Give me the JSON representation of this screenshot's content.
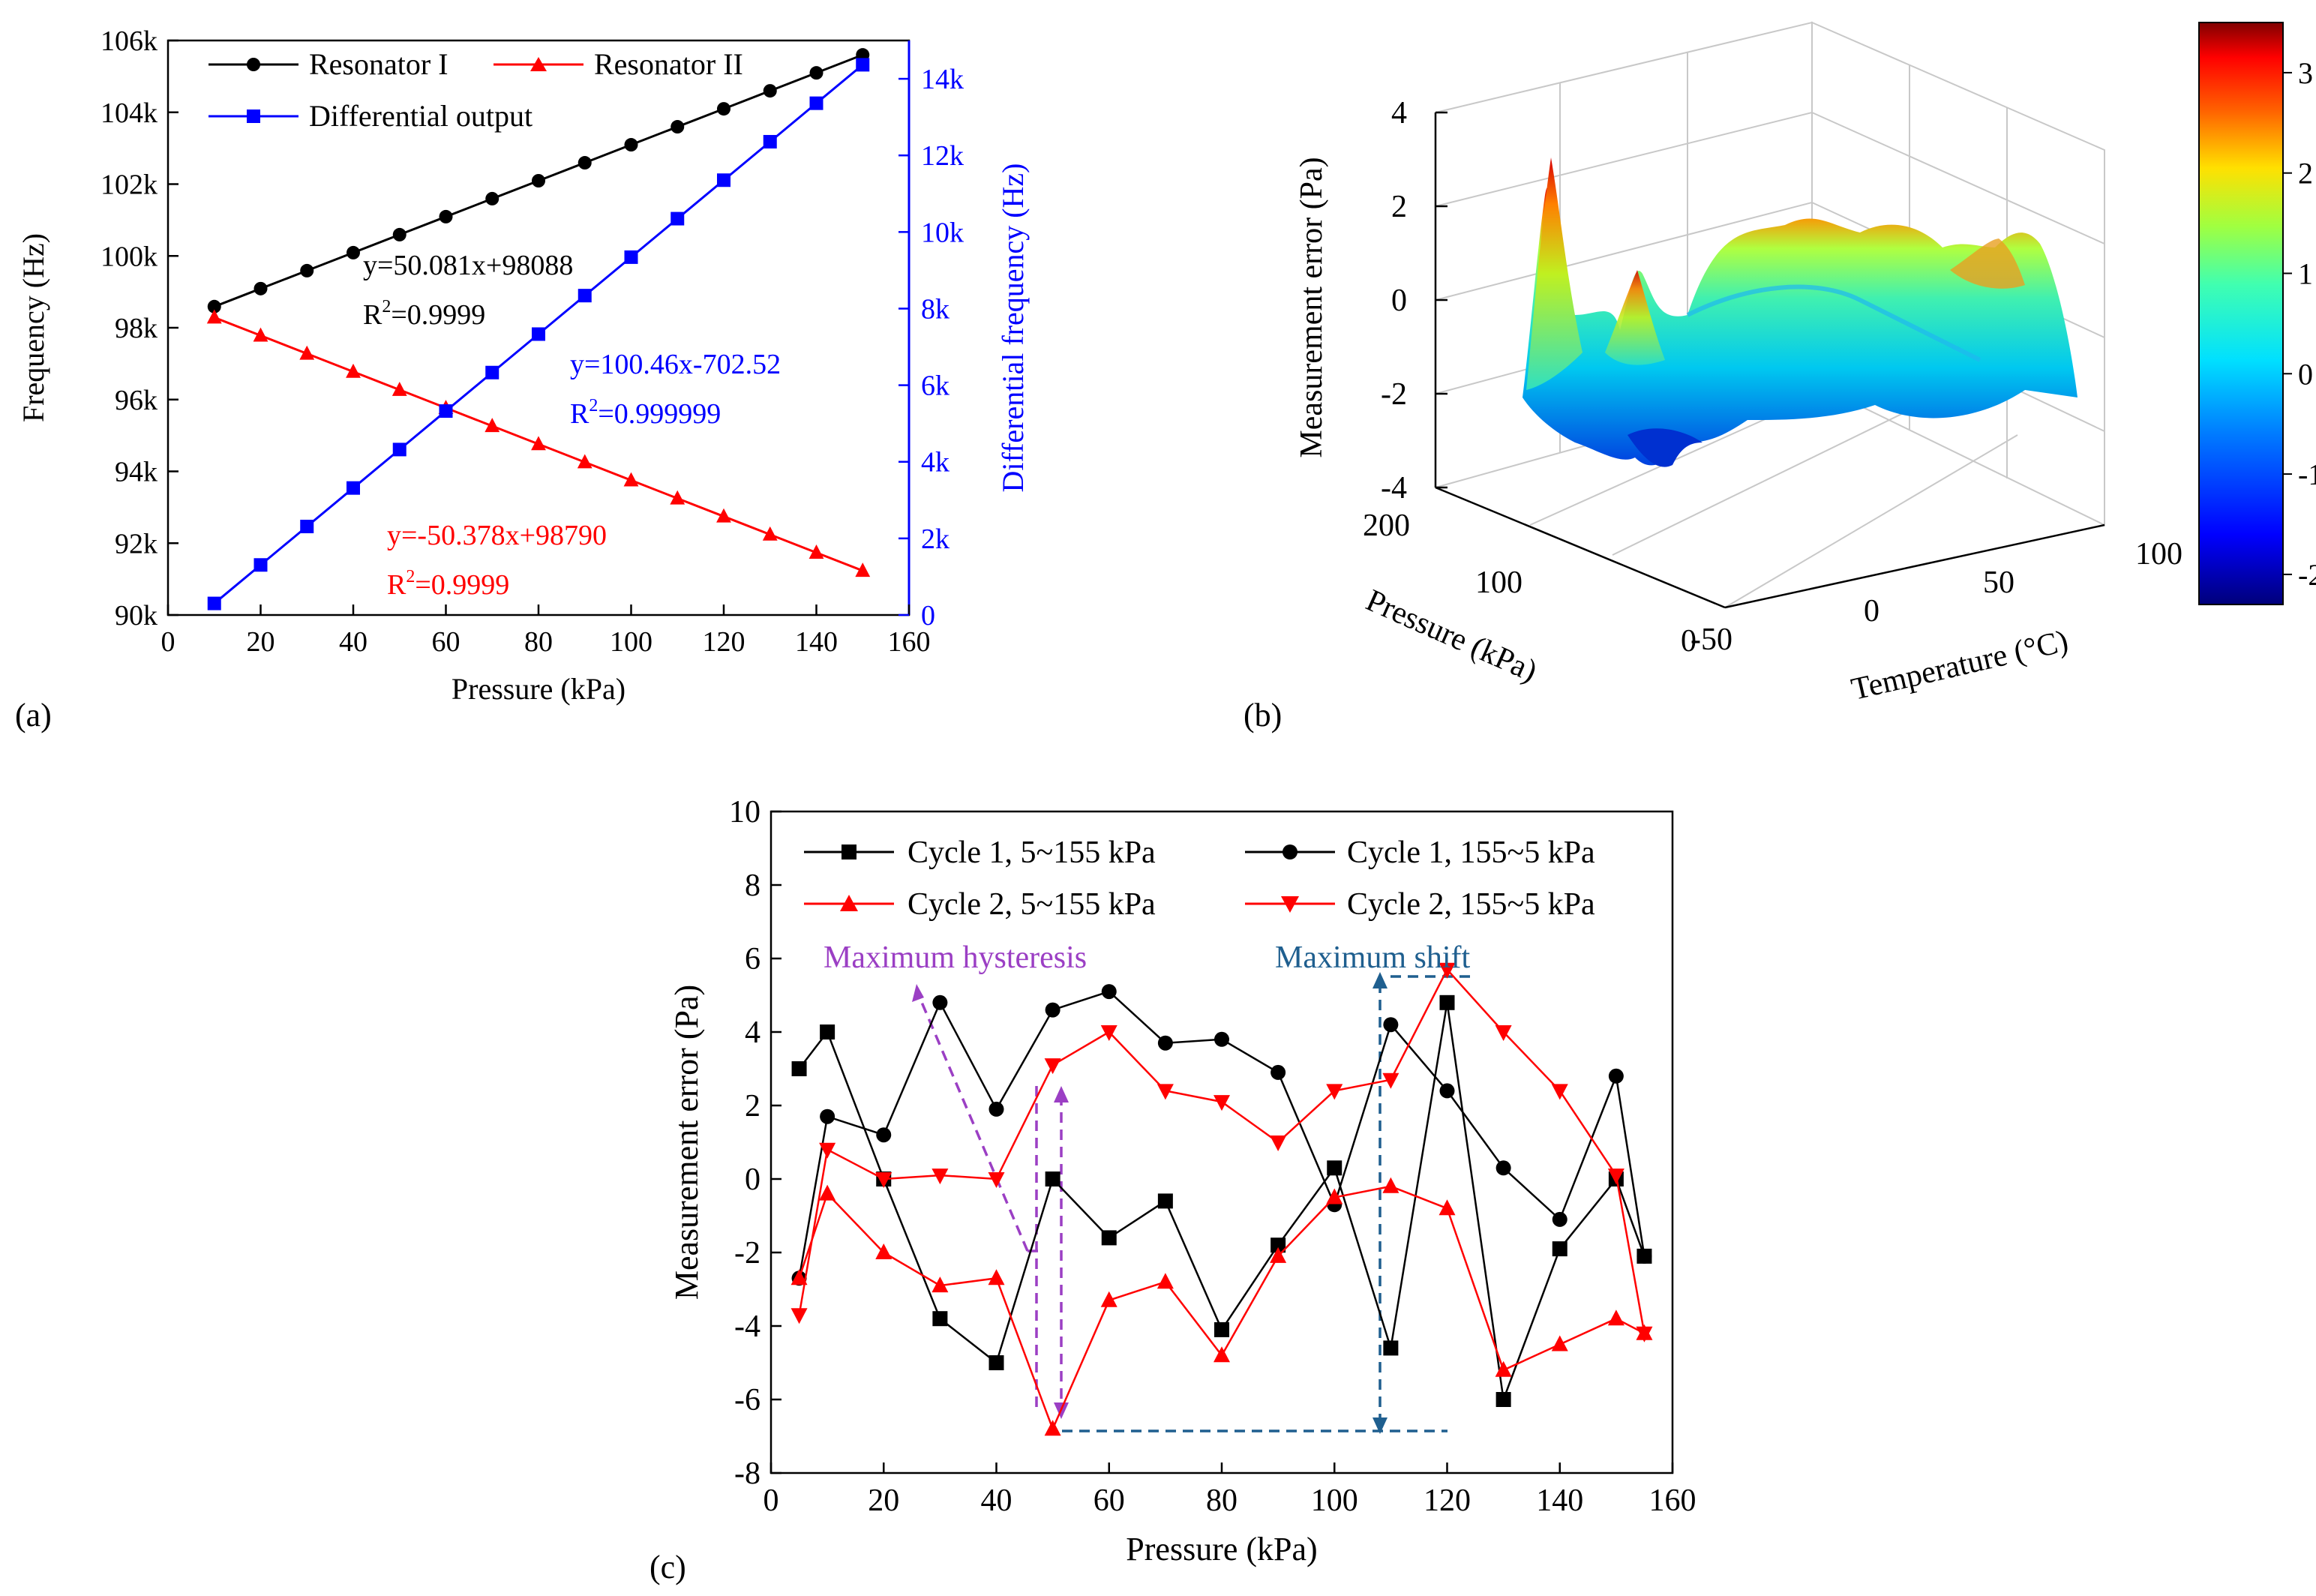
{
  "panels": {
    "a": {
      "label": "(a)"
    },
    "b": {
      "label": "(b)"
    },
    "c": {
      "label": "(c)"
    }
  },
  "colors": {
    "black": "#000000",
    "red": "#ff0000",
    "blue": "#0000ff",
    "purple": "#9b3fc4",
    "teal": "#1f5f8f"
  },
  "chart_data": [
    {
      "id": "a",
      "type": "line",
      "xlabel": "Pressure (kPa)",
      "ylabel": "Frequency (Hz)",
      "y2label": "Differential frequency (Hz)",
      "xlim": [
        0,
        160
      ],
      "ylim": [
        90000,
        106000
      ],
      "y2lim": [
        0,
        15000
      ],
      "xticks": [
        "0",
        "20",
        "40",
        "60",
        "80",
        "100",
        "120",
        "140",
        "160"
      ],
      "yticks": [
        "90k",
        "92k",
        "94k",
        "96k",
        "98k",
        "100k",
        "102k",
        "104k",
        "106k"
      ],
      "y2ticks": [
        "0",
        "2k",
        "4k",
        "6k",
        "8k",
        "10k",
        "12k",
        "14k"
      ],
      "x": [
        10,
        20,
        30,
        40,
        50,
        60,
        70,
        80,
        90,
        100,
        110,
        120,
        130,
        140,
        150
      ],
      "series": [
        {
          "name": "Resonator I",
          "color": "#000000",
          "marker": "circle",
          "axis": "left",
          "values": [
            98589,
            99090,
            99590,
            100091,
            100592,
            101093,
            101594,
            102094,
            102595,
            103096,
            103597,
            104097,
            104598,
            105099,
            105600
          ]
        },
        {
          "name": "Resonator II",
          "color": "#ff0000",
          "marker": "triangle-up",
          "axis": "left",
          "values": [
            98286,
            97783,
            97279,
            96775,
            96271,
            95767,
            95264,
            94760,
            94256,
            93752,
            93248,
            92745,
            92241,
            91737,
            91233
          ]
        },
        {
          "name": "Differential output",
          "color": "#0000ff",
          "marker": "square",
          "axis": "right",
          "values": [
            302,
            1307,
            2311,
            3316,
            4320,
            5325,
            6330,
            7334,
            8339,
            9343,
            10348,
            11353,
            12357,
            13362,
            14366
          ]
        }
      ],
      "annotations": [
        {
          "text": "y=50.081x+98088",
          "color": "#000000"
        },
        {
          "text": "R",
          "sup": "2",
          "rest": "=0.9999",
          "color": "#000000"
        },
        {
          "text": "y=100.46x-702.52",
          "color": "#0000ff"
        },
        {
          "text": "R",
          "sup": "2",
          "rest": "=0.999999",
          "color": "#0000ff"
        },
        {
          "text": "y=-50.378x+98790",
          "color": "#ff0000"
        },
        {
          "text": "R",
          "sup": "2",
          "rest": "=0.9999",
          "color": "#ff0000"
        }
      ]
    },
    {
      "id": "b",
      "type": "surface",
      "zlabel": "Measurement error (Pa)",
      "xlabel": "Pressure (kPa)",
      "ylabel": "Temperature (°C)",
      "zticks": [
        "4",
        "2",
        "0",
        "-2",
        "-4"
      ],
      "xticks": [
        "200",
        "100",
        "0"
      ],
      "yticks": [
        "-50",
        "0",
        "50",
        "100"
      ],
      "colorbar_ticks": [
        "3",
        "2",
        "1",
        "0",
        "-1",
        "-2"
      ],
      "colorbar_range": [
        -2.3,
        3.5
      ]
    },
    {
      "id": "c",
      "type": "line",
      "xlabel": "Pressure (kPa)",
      "ylabel": "Measurement error (Pa)",
      "xlim": [
        0,
        160
      ],
      "ylim": [
        -8,
        10
      ],
      "xticks": [
        "0",
        "20",
        "40",
        "60",
        "80",
        "100",
        "120",
        "140",
        "160"
      ],
      "yticks": [
        "-8",
        "-6",
        "-4",
        "-2",
        "0",
        "2",
        "4",
        "6",
        "8",
        "10"
      ],
      "x": [
        5,
        10,
        20,
        30,
        40,
        50,
        60,
        70,
        80,
        90,
        100,
        110,
        120,
        130,
        140,
        150,
        155
      ],
      "series": [
        {
          "name": "Cycle 1, 5~155 kPa",
          "color": "#000000",
          "marker": "square",
          "values": [
            3.0,
            4.0,
            0.0,
            -3.8,
            -5.0,
            0.0,
            -1.6,
            -0.6,
            -4.1,
            -1.8,
            0.3,
            -4.6,
            4.8,
            -6.0,
            -1.9,
            0.0,
            -2.1
          ]
        },
        {
          "name": "Cycle 1, 155~5 kPa",
          "color": "#000000",
          "marker": "circle",
          "values": [
            -2.7,
            1.7,
            1.2,
            4.8,
            1.9,
            4.6,
            5.1,
            3.7,
            3.8,
            2.9,
            -0.7,
            4.2,
            2.4,
            0.3,
            -1.1,
            2.8,
            -2.1
          ]
        },
        {
          "name": "Cycle 2, 5~155 kPa",
          "color": "#ff0000",
          "marker": "triangle-up",
          "values": [
            -2.7,
            -0.4,
            -2.0,
            -2.9,
            -2.7,
            -6.8,
            -3.3,
            -2.8,
            -4.8,
            -2.1,
            -0.5,
            -0.2,
            -0.8,
            -5.2,
            -4.5,
            -3.8,
            -4.2
          ]
        },
        {
          "name": "Cycle 2, 155~5 kPa",
          "color": "#ff0000",
          "marker": "triangle-down",
          "values": [
            -3.7,
            0.8,
            0.0,
            0.1,
            0.0,
            3.1,
            4.0,
            2.4,
            2.1,
            1.0,
            2.4,
            2.7,
            5.7,
            4.0,
            2.4,
            0.1,
            -4.2
          ]
        }
      ],
      "annotations": [
        {
          "text": "Maximum hysteresis",
          "color": "#9b3fc4"
        },
        {
          "text": "Maximum shift",
          "color": "#1f5f8f"
        }
      ]
    }
  ]
}
